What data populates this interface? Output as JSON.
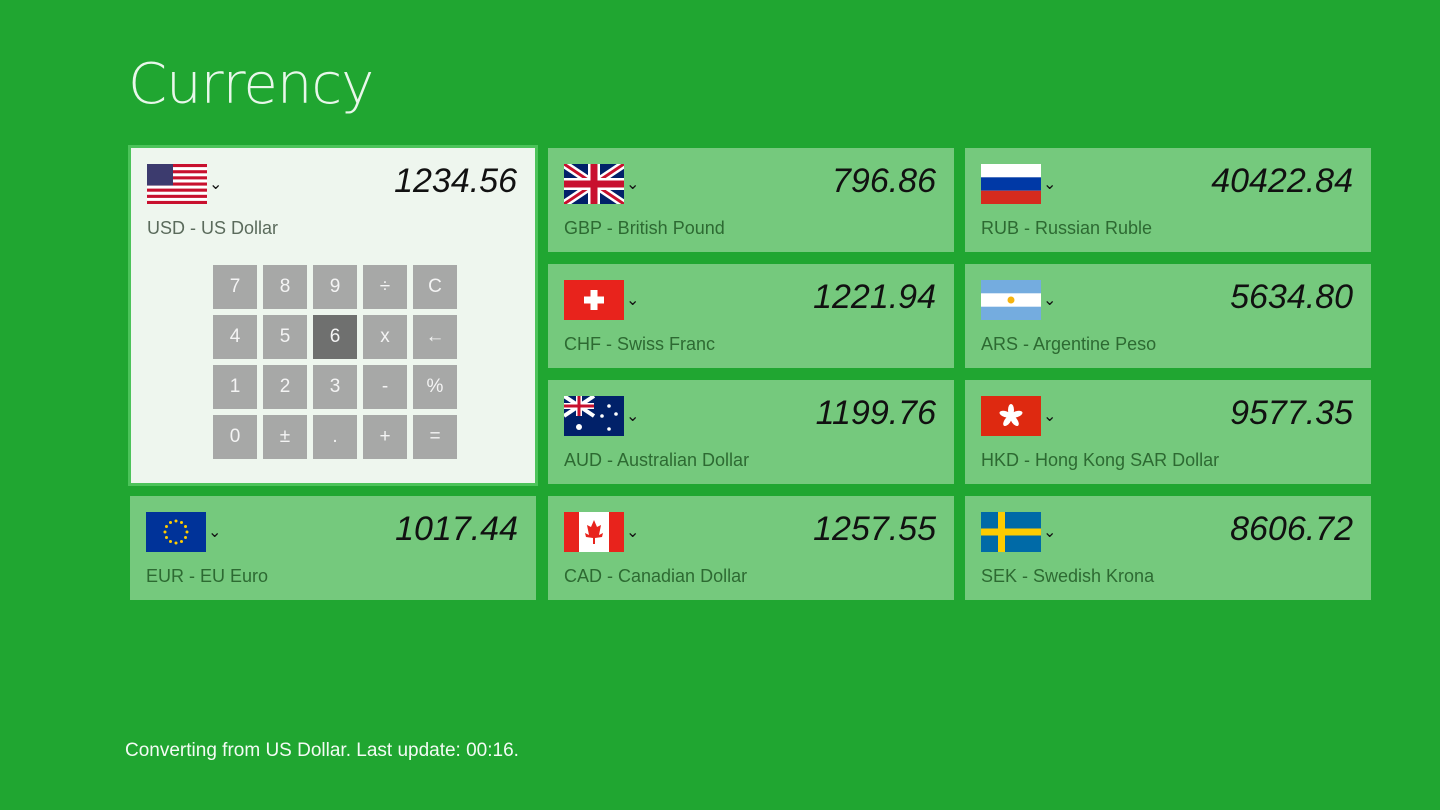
{
  "app": {
    "title": "Currency"
  },
  "base": {
    "code_name": "USD - US Dollar",
    "value": "1234.56",
    "flag": "us-flag-icon"
  },
  "keypad": [
    "7",
    "8",
    "9",
    "÷",
    "C",
    "4",
    "5",
    "6",
    "x",
    "←",
    "1",
    "2",
    "3",
    "-",
    "%",
    "0",
    "±",
    ".",
    "+",
    "="
  ],
  "keypad_pressed": "6",
  "tiles": [
    {
      "code_name": "EUR - EU Euro",
      "value": "1017.44",
      "flag": "eu"
    },
    {
      "code_name": "GBP - British Pound",
      "value": "796.86",
      "flag": "gb"
    },
    {
      "code_name": "CHF - Swiss Franc",
      "value": "1221.94",
      "flag": "ch"
    },
    {
      "code_name": "AUD - Australian Dollar",
      "value": "1199.76",
      "flag": "au"
    },
    {
      "code_name": "CAD - Canadian Dollar",
      "value": "1257.55",
      "flag": "ca"
    },
    {
      "code_name": "RUB - Russian Ruble",
      "value": "40422.84",
      "flag": "ru"
    },
    {
      "code_name": "ARS - Argentine Peso",
      "value": "5634.80",
      "flag": "ar"
    },
    {
      "code_name": "HKD - Hong Kong SAR Dollar",
      "value": "9577.35",
      "flag": "hk"
    },
    {
      "code_name": "SEK - Swedish Krona",
      "value": "8606.72",
      "flag": "se"
    }
  ],
  "status": "Converting from US Dollar. Last update: 00:16.",
  "colors": {
    "background": "#20a631",
    "tile": "#75c97d",
    "selected_tile": "#eef6ee",
    "key": "#a7a8a7",
    "key_pressed": "#6f706f"
  }
}
